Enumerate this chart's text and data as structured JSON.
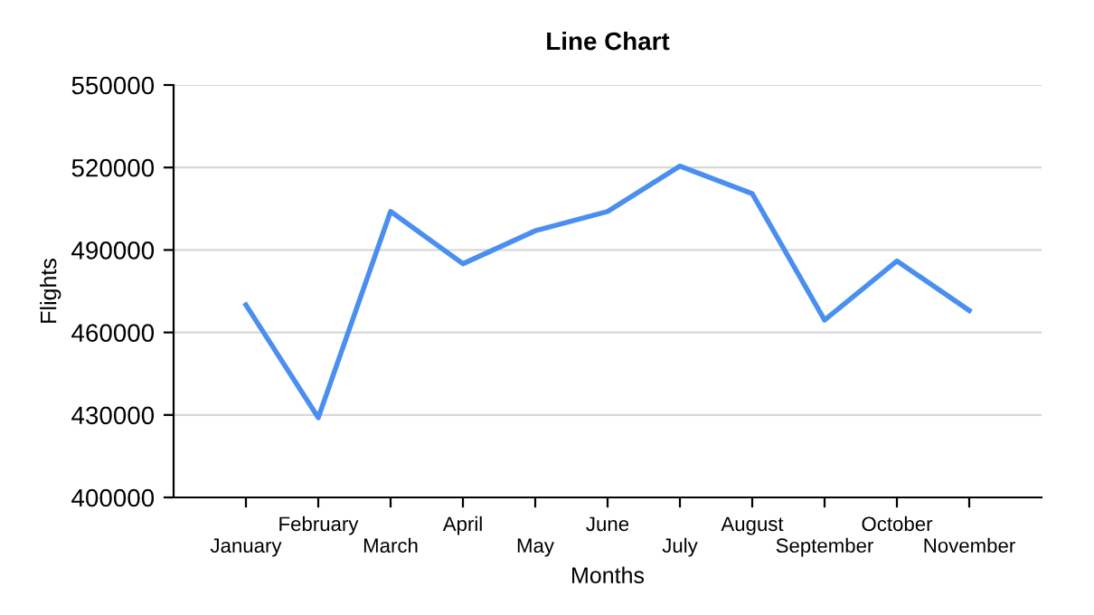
{
  "chart_data": {
    "type": "line",
    "title": "Line Chart",
    "xlabel": "Months",
    "ylabel": "Flights",
    "categories": [
      "January",
      "February",
      "March",
      "April",
      "May",
      "June",
      "July",
      "August",
      "September",
      "October",
      "November"
    ],
    "series": [
      {
        "color": "#4a8ff0",
        "values": [
          470000,
          429000,
          504000,
          485000,
          497000,
          504000,
          520500,
          510500,
          464500,
          486000,
          468000
        ]
      }
    ],
    "ylim": [
      400000,
      550000
    ],
    "yticks": [
      400000,
      430000,
      460000,
      490000,
      520000,
      550000
    ],
    "grid": "y",
    "marker": "none",
    "line_style": "solid"
  }
}
